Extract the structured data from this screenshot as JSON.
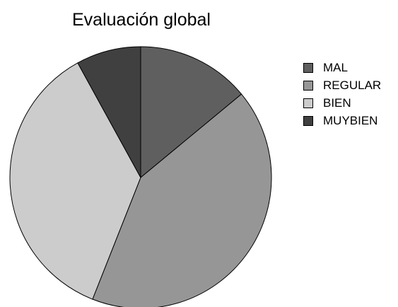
{
  "chart_data": {
    "type": "pie",
    "title": "Evaluación global",
    "categories": [
      "MAL",
      "REGULAR",
      "BIEN",
      "MUYBIEN"
    ],
    "values": [
      14,
      42,
      36,
      8
    ],
    "colors": [
      "#5f5f5f",
      "#969696",
      "#cccccc",
      "#404040"
    ],
    "start_angle_deg": 0,
    "direction": "clockwise",
    "legend_position": "right"
  }
}
